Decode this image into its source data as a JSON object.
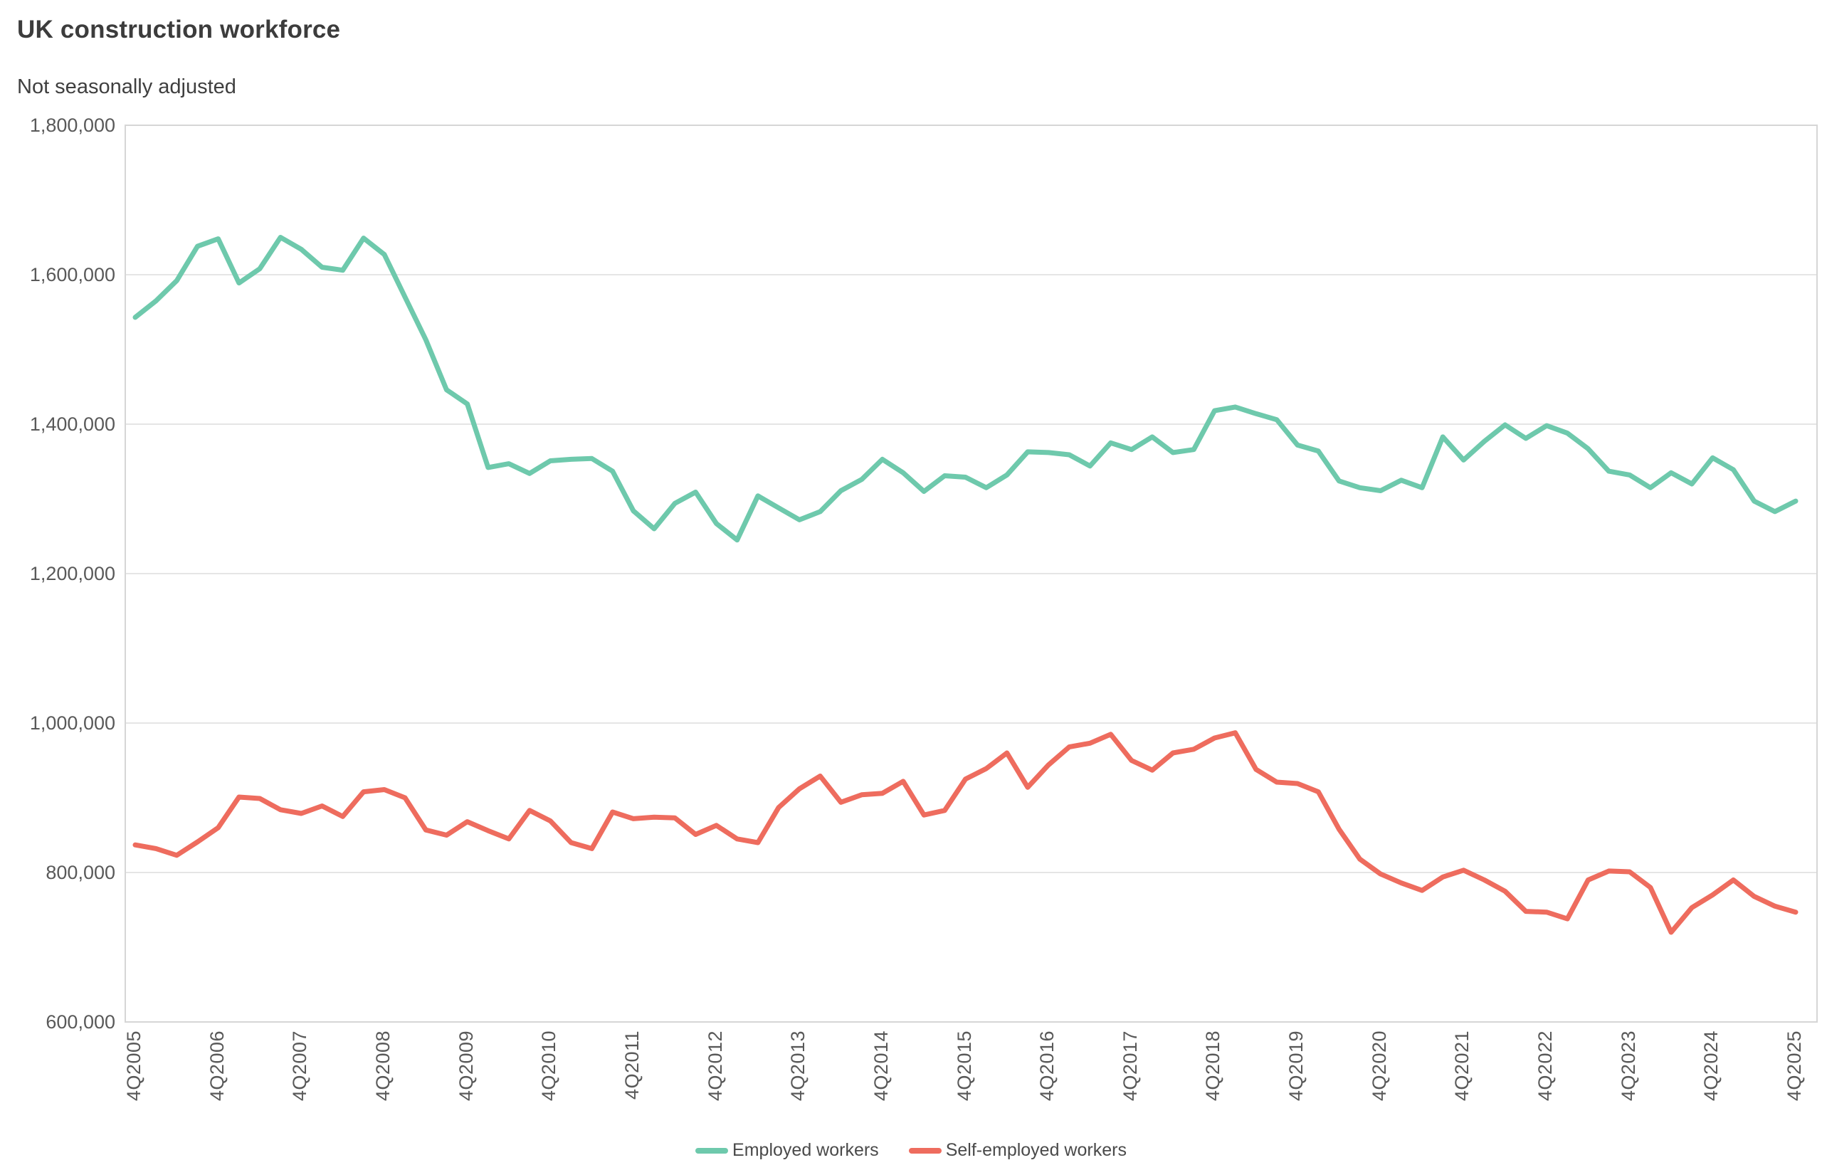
{
  "title": "UK construction workforce",
  "subtitle": "Not seasonally adjusted",
  "colors": {
    "employed": "#6ec9ac",
    "self_employed": "#ee6c5e",
    "gridline": "#e5e5e5",
    "plot_border": "#d6d6d6",
    "axis_text": "#595959"
  },
  "legend": {
    "items": [
      {
        "label": "Employed workers",
        "color": "#6ec9ac"
      },
      {
        "label": "Self-employed workers",
        "color": "#ee6c5e"
      }
    ]
  },
  "y_axis": {
    "ticks": [
      "1,800,000",
      "1,600,000",
      "1,400,000",
      "1,200,000",
      "1,000,000",
      "800,000",
      "600,000"
    ],
    "tick_values": [
      1800000,
      1600000,
      1400000,
      1200000,
      1000000,
      800000,
      600000
    ]
  },
  "x_axis": {
    "ticks": [
      "4Q2005",
      "4Q2006",
      "4Q2007",
      "4Q2008",
      "4Q2009",
      "4Q2010",
      "4Q2011",
      "4Q2012",
      "4Q2013",
      "4Q2014",
      "4Q2015",
      "4Q2016",
      "4Q2017",
      "4Q2018",
      "4Q2019",
      "4Q2020",
      "4Q2021",
      "4Q2022",
      "4Q2023",
      "4Q2024",
      "4Q2025"
    ]
  },
  "chart_data": {
    "type": "line",
    "title": "UK construction workforce",
    "subtitle": "Not seasonally adjusted",
    "frequency": "quarterly",
    "x_start": "4Q2005",
    "x_end": "4Q2025",
    "xlabel": "",
    "ylabel": "",
    "ylim": [
      600000,
      1800000
    ],
    "grid": true,
    "legend_position": "bottom",
    "series": [
      {
        "name": "Employed workers",
        "color": "#6ec9ac",
        "values": [
          1543000,
          1565000,
          1592000,
          1638000,
          1648000,
          1589000,
          1608000,
          1650000,
          1634000,
          1610000,
          1606000,
          1649000,
          1627000,
          1570000,
          1513000,
          1446000,
          1427000,
          1342000,
          1347000,
          1334000,
          1351000,
          1353000,
          1354000,
          1337000,
          1284000,
          1260000,
          1294000,
          1309000,
          1267000,
          1245000,
          1304000,
          1288000,
          1272000,
          1283000,
          1311000,
          1326000,
          1353000,
          1335000,
          1310000,
          1331000,
          1329000,
          1315000,
          1332000,
          1363000,
          1362000,
          1359000,
          1344000,
          1375000,
          1366000,
          1383000,
          1362000,
          1366000,
          1418000,
          1423000,
          1414000,
          1406000,
          1372000,
          1364000,
          1324000,
          1315000,
          1311000,
          1325000,
          1315000,
          1383000,
          1352000,
          1377000,
          1399000,
          1381000,
          1398000,
          1388000,
          1367000,
          1337000,
          1332000,
          1315000,
          1335000,
          1320000,
          1355000,
          1339000,
          1297000,
          1283000,
          1297000
        ]
      },
      {
        "name": "Self-employed workers",
        "color": "#ee6c5e",
        "values": [
          837000,
          832000,
          823000,
          841000,
          860000,
          901000,
          899000,
          884000,
          879000,
          889000,
          875000,
          908000,
          911000,
          900000,
          857000,
          850000,
          868000,
          856000,
          845000,
          883000,
          869000,
          840000,
          832000,
          881000,
          872000,
          874000,
          873000,
          851000,
          863000,
          845000,
          840000,
          887000,
          912000,
          929000,
          894000,
          904000,
          906000,
          922000,
          877000,
          883000,
          925000,
          939000,
          960000,
          914000,
          944000,
          968000,
          973000,
          985000,
          950000,
          937000,
          960000,
          965000,
          980000,
          987000,
          938000,
          921000,
          919000,
          908000,
          858000,
          818000,
          798000,
          786000,
          776000,
          794000,
          803000,
          790000,
          775000,
          748000,
          747000,
          738000,
          790000,
          802000,
          801000,
          780000,
          720000,
          753000,
          770000,
          790000,
          768000,
          755000,
          747000
        ]
      }
    ]
  }
}
